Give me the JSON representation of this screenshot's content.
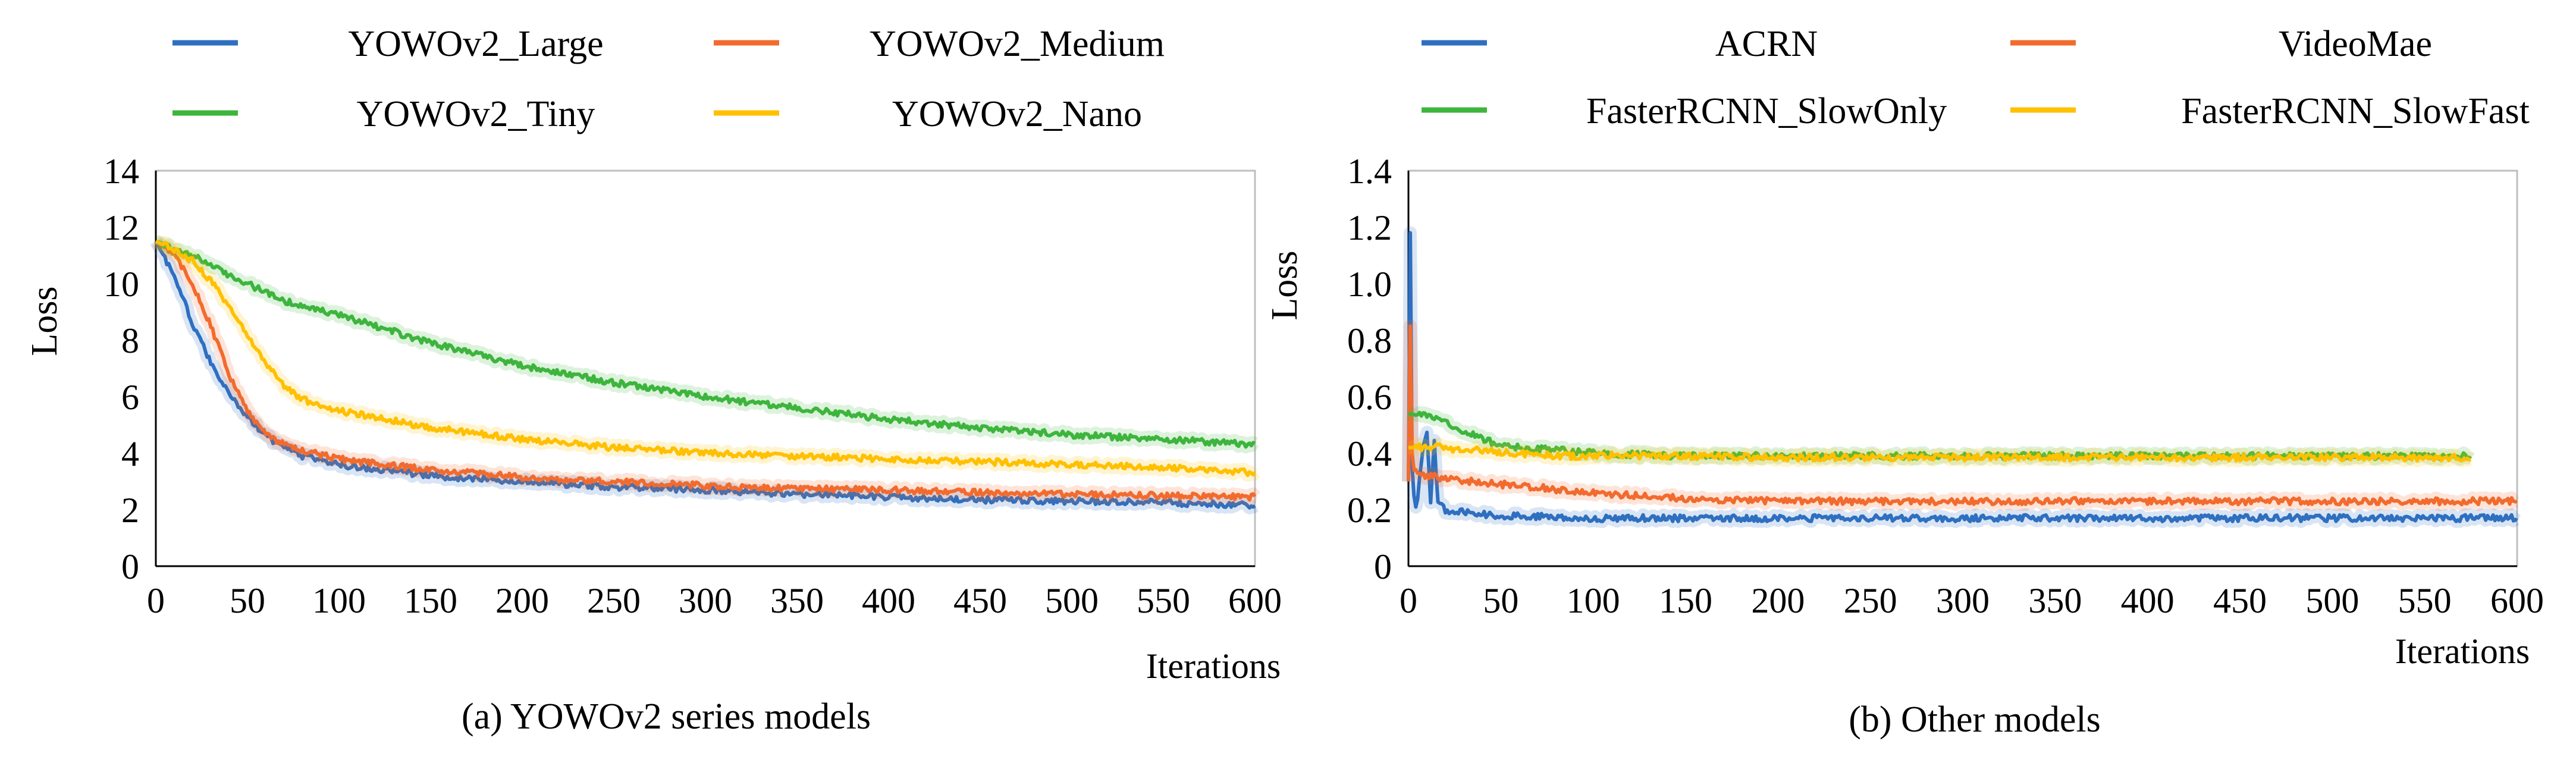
{
  "chart_data": [
    {
      "type": "line",
      "caption": "(a) YOWOv2 series models",
      "xlabel": "Iterations",
      "ylabel": "Loss",
      "xlim": [
        0,
        600
      ],
      "ylim": [
        0,
        14
      ],
      "xticks": [
        0,
        50,
        100,
        150,
        200,
        250,
        300,
        350,
        400,
        450,
        500,
        550,
        600
      ],
      "yticks": [
        0,
        2,
        4,
        6,
        8,
        10,
        12,
        14
      ],
      "grid": false,
      "legend_position": "top",
      "series": [
        {
          "name": "YOWOv2_Large",
          "color": "#2E6FC0",
          "x": [
            0,
            10,
            20,
            30,
            40,
            50,
            60,
            70,
            80,
            100,
            150,
            200,
            250,
            300,
            350,
            400,
            450,
            500,
            550,
            600
          ],
          "y": [
            11.5,
            10.3,
            8.6,
            7.2,
            6.1,
            5.3,
            4.6,
            4.2,
            3.9,
            3.6,
            3.2,
            3.0,
            2.8,
            2.7,
            2.55,
            2.45,
            2.35,
            2.3,
            2.25,
            2.15
          ]
        },
        {
          "name": "YOWOv2_Medium",
          "color": "#F26B2E",
          "x": [
            0,
            10,
            20,
            30,
            40,
            50,
            60,
            70,
            80,
            100,
            150,
            200,
            250,
            300,
            350,
            400,
            450,
            500,
            550,
            600
          ],
          "y": [
            11.5,
            11.0,
            10.0,
            8.5,
            6.8,
            5.5,
            4.7,
            4.3,
            4.1,
            3.8,
            3.4,
            3.15,
            3.0,
            2.85,
            2.75,
            2.7,
            2.6,
            2.55,
            2.5,
            2.45
          ]
        },
        {
          "name": "YOWOv2_Tiny",
          "color": "#3DB53D",
          "x": [
            0,
            10,
            20,
            30,
            40,
            50,
            60,
            70,
            80,
            100,
            150,
            200,
            250,
            300,
            350,
            400,
            450,
            500,
            550,
            600
          ],
          "y": [
            11.5,
            11.3,
            11.0,
            10.7,
            10.3,
            10.0,
            9.7,
            9.4,
            9.2,
            8.9,
            7.9,
            7.1,
            6.5,
            6.0,
            5.6,
            5.2,
            4.9,
            4.65,
            4.5,
            4.3
          ]
        },
        {
          "name": "YOWOv2_Nano",
          "color": "#FFC000",
          "x": [
            0,
            10,
            20,
            30,
            40,
            50,
            60,
            70,
            80,
            100,
            150,
            200,
            250,
            300,
            350,
            400,
            450,
            500,
            550,
            600
          ],
          "y": [
            11.5,
            11.2,
            10.8,
            10.1,
            9.2,
            8.2,
            7.2,
            6.4,
            5.9,
            5.5,
            4.9,
            4.5,
            4.2,
            4.0,
            3.9,
            3.8,
            3.7,
            3.6,
            3.5,
            3.3
          ]
        }
      ]
    },
    {
      "type": "line",
      "caption": "(b) Other models",
      "xlabel": "Iterations",
      "ylabel": "Loss",
      "xlim": [
        0,
        600
      ],
      "ylim": [
        0,
        1.4
      ],
      "xticks": [
        0,
        50,
        100,
        150,
        200,
        250,
        300,
        350,
        400,
        450,
        500,
        550,
        600
      ],
      "yticks": [
        0,
        0.2,
        0.4,
        0.6,
        0.8,
        1.0,
        1.2,
        1.4
      ],
      "ytick_labels": [
        "0",
        "0.2",
        "0.4",
        "0.6",
        "0.8",
        "1.0",
        "1.2",
        "1.4"
      ],
      "grid": false,
      "legend_position": "top",
      "series": [
        {
          "name": "ACRN",
          "color": "#2E6FC0",
          "x": [
            0,
            1,
            2,
            3,
            4,
            5,
            6,
            8,
            10,
            12,
            14,
            16,
            20,
            30,
            50,
            100,
            150,
            200,
            300,
            400,
            500,
            600
          ],
          "y": [
            0.3,
            1.18,
            0.35,
            0.25,
            0.22,
            0.24,
            0.3,
            0.42,
            0.48,
            0.22,
            0.45,
            0.22,
            0.2,
            0.19,
            0.18,
            0.17,
            0.17,
            0.17,
            0.17,
            0.17,
            0.17,
            0.17
          ]
        },
        {
          "name": "VideoMae",
          "color": "#F26B2E",
          "x": [
            0,
            1,
            2,
            3,
            5,
            10,
            20,
            50,
            100,
            150,
            200,
            300,
            400,
            500,
            600
          ],
          "y": [
            0.3,
            0.85,
            0.4,
            0.34,
            0.33,
            0.32,
            0.31,
            0.29,
            0.26,
            0.24,
            0.23,
            0.23,
            0.23,
            0.23,
            0.23
          ]
        },
        {
          "name": "FasterRCNN_SlowOnly",
          "color": "#3DB53D",
          "x": [
            0,
            10,
            20,
            30,
            40,
            50,
            60,
            80,
            100,
            150,
            200,
            300,
            400,
            500,
            575
          ],
          "y": [
            0.54,
            0.53,
            0.51,
            0.48,
            0.45,
            0.43,
            0.42,
            0.41,
            0.4,
            0.39,
            0.39,
            0.39,
            0.39,
            0.39,
            0.39
          ]
        },
        {
          "name": "FasterRCNN_SlowFast",
          "color": "#FFC000",
          "x": [
            0,
            10,
            20,
            30,
            40,
            50,
            60,
            80,
            100,
            150,
            200,
            300,
            400,
            500,
            575
          ],
          "y": [
            0.42,
            0.42,
            0.42,
            0.41,
            0.41,
            0.4,
            0.4,
            0.39,
            0.39,
            0.39,
            0.385,
            0.385,
            0.385,
            0.385,
            0.385
          ]
        }
      ]
    }
  ]
}
